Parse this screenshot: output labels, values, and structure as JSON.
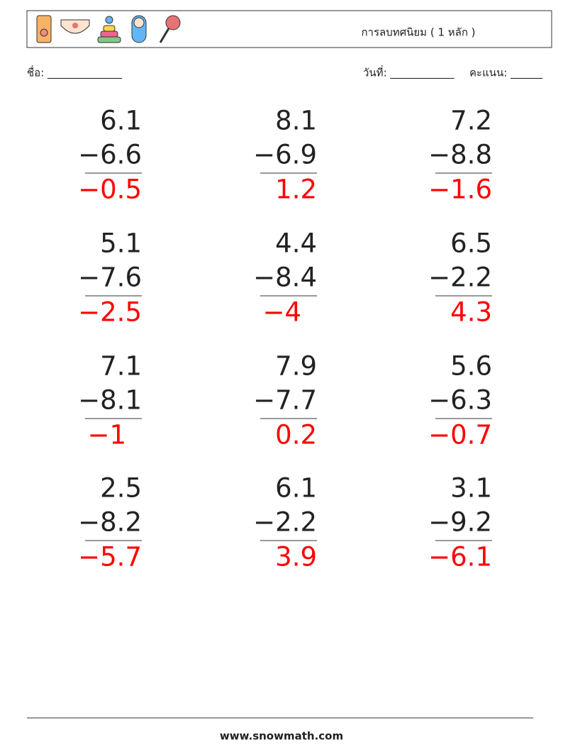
{
  "header": {
    "title": "การลบทศนิยม ( 1 หลัก )"
  },
  "info": {
    "name": "ชื่อ: ______________",
    "date": "วันที่: ____________",
    "score": "คะแนน: ______"
  },
  "problems": [
    {
      "top": "6.1",
      "bottom": "−6.6",
      "answer": "−0.5"
    },
    {
      "top": "8.1",
      "bottom": "−6.9",
      "answer": "1.2"
    },
    {
      "top": "7.2",
      "bottom": "−8.8",
      "answer": "−1.6"
    },
    {
      "top": "5.1",
      "bottom": "−7.6",
      "answer": "−2.5"
    },
    {
      "top": "4.4",
      "bottom": "−8.4",
      "answer": "−4"
    },
    {
      "top": "6.5",
      "bottom": "−2.2",
      "answer": "4.3"
    },
    {
      "top": "7.1",
      "bottom": "−8.1",
      "answer": "−1"
    },
    {
      "top": "7.9",
      "bottom": "−7.7",
      "answer": "0.2"
    },
    {
      "top": "5.6",
      "bottom": "−6.3",
      "answer": "−0.7"
    },
    {
      "top": "2.5",
      "bottom": "−8.2",
      "answer": "−5.7"
    },
    {
      "top": "6.1",
      "bottom": "−2.2",
      "answer": "3.9"
    },
    {
      "top": "3.1",
      "bottom": "−9.2",
      "answer": "−6.1"
    }
  ],
  "footer": {
    "site": "www.snowmath.com"
  }
}
